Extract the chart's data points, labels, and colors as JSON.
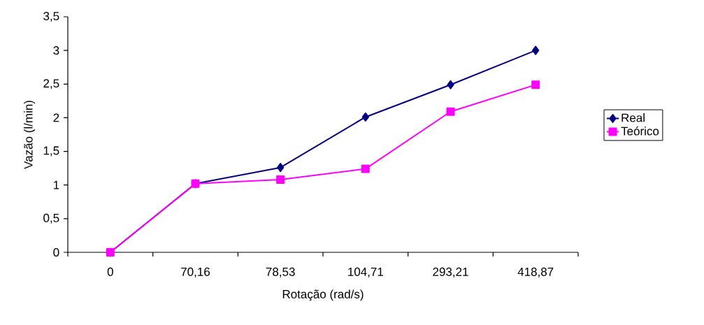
{
  "chart_data": {
    "type": "line",
    "xlabel": "Rotação (rad/s)",
    "ylabel": "Vazão (l/min)",
    "categories": [
      "0",
      "70,16",
      "78,53",
      "104,71",
      "293,21",
      "418,87"
    ],
    "series": [
      {
        "name": "Real",
        "color": "#000080",
        "marker": "diamond",
        "values": [
          0,
          1.02,
          1.26,
          2.01,
          2.49,
          3.0
        ]
      },
      {
        "name": "Teórico",
        "color": "#ff00ff",
        "marker": "square",
        "values": [
          0,
          1.02,
          1.08,
          1.24,
          2.09,
          2.49
        ]
      }
    ],
    "ylim": [
      0,
      3.5
    ],
    "yticks": [
      0,
      {
        "value": 0.5,
        "label": "0,5"
      },
      1,
      {
        "value": 1.5,
        "label": "1,5"
      },
      2,
      {
        "value": 2.5,
        "label": "2,5"
      },
      3,
      {
        "value": 3.5,
        "label": "3,5"
      }
    ],
    "line_style": "solid",
    "grid": false,
    "legend": "right"
  }
}
